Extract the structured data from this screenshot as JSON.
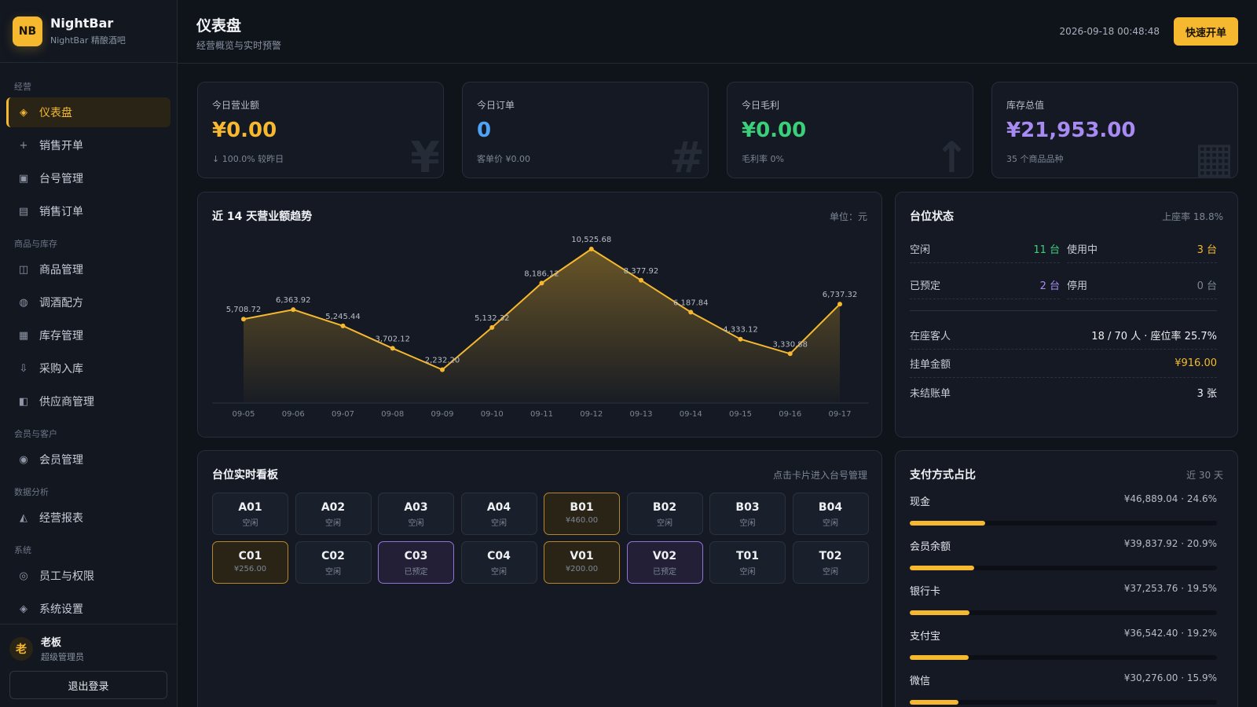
{
  "brand": {
    "logo": "NB",
    "name": "NightBar",
    "subtitle": "NightBar 精酿酒吧"
  },
  "nav": {
    "groups": [
      {
        "label": "经营",
        "items": [
          {
            "label": "仪表盘",
            "icon": "◈",
            "active": true
          },
          {
            "label": "销售开单",
            "icon": "+"
          },
          {
            "label": "台号管理",
            "icon": "▣"
          },
          {
            "label": "销售订单",
            "icon": "▤"
          }
        ]
      },
      {
        "label": "商品与库存",
        "items": [
          {
            "label": "商品管理",
            "icon": "◫"
          },
          {
            "label": "调酒配方",
            "icon": "◍"
          },
          {
            "label": "库存管理",
            "icon": "▦"
          },
          {
            "label": "采购入库",
            "icon": "⇩"
          },
          {
            "label": "供应商管理",
            "icon": "◧"
          }
        ]
      },
      {
        "label": "会员与客户",
        "items": [
          {
            "label": "会员管理",
            "icon": "◉"
          }
        ]
      },
      {
        "label": "数据分析",
        "items": [
          {
            "label": "经营报表",
            "icon": "◭"
          }
        ]
      },
      {
        "label": "系统",
        "items": [
          {
            "label": "员工与权限",
            "icon": "◎"
          },
          {
            "label": "系统设置",
            "icon": "◈"
          }
        ]
      }
    ]
  },
  "user": {
    "avatar": "老",
    "name": "老板",
    "role": "超级管理员",
    "logout": "退出登录"
  },
  "header": {
    "title": "仪表盘",
    "subtitle": "经营概览与实时预警",
    "datetime": "2026-09-18 00:48:48",
    "quick_button": "快速开单"
  },
  "stats": [
    {
      "label": "今日营业额",
      "value": "¥0.00",
      "note": "↓ 100.0% 较昨日",
      "color": "#f5b82e",
      "watermark": "¥"
    },
    {
      "label": "今日订单",
      "value": "0",
      "note": "客单价 ¥0.00",
      "color": "#4ea3f5",
      "watermark": "#"
    },
    {
      "label": "今日毛利",
      "value": "¥0.00",
      "note": "毛利率 0%",
      "color": "#3ccf7a",
      "watermark": "↑"
    },
    {
      "label": "库存总值",
      "value": "¥21,953.00",
      "note": "35 个商品品种",
      "color": "#a88bf2",
      "watermark": "▦"
    }
  ],
  "trend": {
    "title": "近 14 天营业额趋势",
    "unit": "单位：元",
    "line_color": "#f5b82e"
  },
  "chart_data": {
    "type": "area",
    "title": "近 14 天营业额趋势",
    "categories": [
      "09-05",
      "09-06",
      "09-07",
      "09-08",
      "09-09",
      "09-10",
      "09-11",
      "09-12",
      "09-13",
      "09-14",
      "09-15",
      "09-16",
      "09-17"
    ],
    "values": [
      5708.72,
      6363.92,
      5245.44,
      3702.12,
      2232.2,
      5132.32,
      8186.12,
      10525.68,
      8377.92,
      6187.84,
      4333.12,
      3330.88,
      6737.32
    ],
    "labels": [
      "5,708.72",
      "6,363.92",
      "5,245.44",
      "3,702.12",
      "2,232.20",
      "5,132.32",
      "8,186.12",
      "10,525.68",
      "8,377.92",
      "6,187.84",
      "4,333.12",
      "3,330.88",
      "6,737.32"
    ],
    "ylim": [
      0,
      10525.68
    ]
  },
  "table_status": {
    "title": "台位状态",
    "rate": "上座率 18.8%",
    "grid": [
      {
        "label": "空闲",
        "value": "11 台",
        "color": "#3ccf7a"
      },
      {
        "label": "使用中",
        "value": "3 台",
        "color": "#f5b82e"
      },
      {
        "label": "已预定",
        "value": "2 台",
        "color": "#a88bf2"
      },
      {
        "label": "停用",
        "value": "0 台",
        "color": "#7d8696"
      }
    ],
    "rows": [
      {
        "label": "在座客人",
        "value": "18 / 70 人 · 座位率 25.7%",
        "color": "#eef0f4"
      },
      {
        "label": "挂单金额",
        "value": "¥916.00",
        "color": "#f5b82e"
      },
      {
        "label": "未结账单",
        "value": "3 张",
        "color": "#eef0f4"
      }
    ]
  },
  "board": {
    "title": "台位实时看板",
    "hint": "点击卡片进入台号管理",
    "tiles": [
      {
        "code": "A01",
        "sub": "空闲",
        "state": "idle"
      },
      {
        "code": "A02",
        "sub": "空闲",
        "state": "idle"
      },
      {
        "code": "A03",
        "sub": "空闲",
        "state": "idle"
      },
      {
        "code": "A04",
        "sub": "空闲",
        "state": "idle"
      },
      {
        "code": "B01",
        "sub": "¥460.00",
        "state": "busy"
      },
      {
        "code": "B02",
        "sub": "空闲",
        "state": "idle"
      },
      {
        "code": "B03",
        "sub": "空闲",
        "state": "idle"
      },
      {
        "code": "B04",
        "sub": "空闲",
        "state": "idle"
      },
      {
        "code": "C01",
        "sub": "¥256.00",
        "state": "busy"
      },
      {
        "code": "C02",
        "sub": "空闲",
        "state": "idle"
      },
      {
        "code": "C03",
        "sub": "已预定",
        "state": "reserved"
      },
      {
        "code": "C04",
        "sub": "空闲",
        "state": "idle"
      },
      {
        "code": "V01",
        "sub": "¥200.00",
        "state": "busy"
      },
      {
        "code": "V02",
        "sub": "已预定",
        "state": "reserved"
      },
      {
        "code": "T01",
        "sub": "空闲",
        "state": "idle"
      },
      {
        "code": "T02",
        "sub": "空闲",
        "state": "idle"
      }
    ]
  },
  "payment": {
    "title": "支付方式占比",
    "period": "近 30 天",
    "methods": [
      {
        "name": "现金",
        "amount": "¥46,889.04 · 24.6%",
        "share": 0.246
      },
      {
        "name": "会员余额",
        "amount": "¥39,837.92 · 20.9%",
        "share": 0.209
      },
      {
        "name": "银行卡",
        "amount": "¥37,253.76 · 19.5%",
        "share": 0.195
      },
      {
        "name": "支付宝",
        "amount": "¥36,542.40 · 19.2%",
        "share": 0.192
      },
      {
        "name": "微信",
        "amount": "¥30,276.00 · 15.9%",
        "share": 0.159
      }
    ]
  }
}
